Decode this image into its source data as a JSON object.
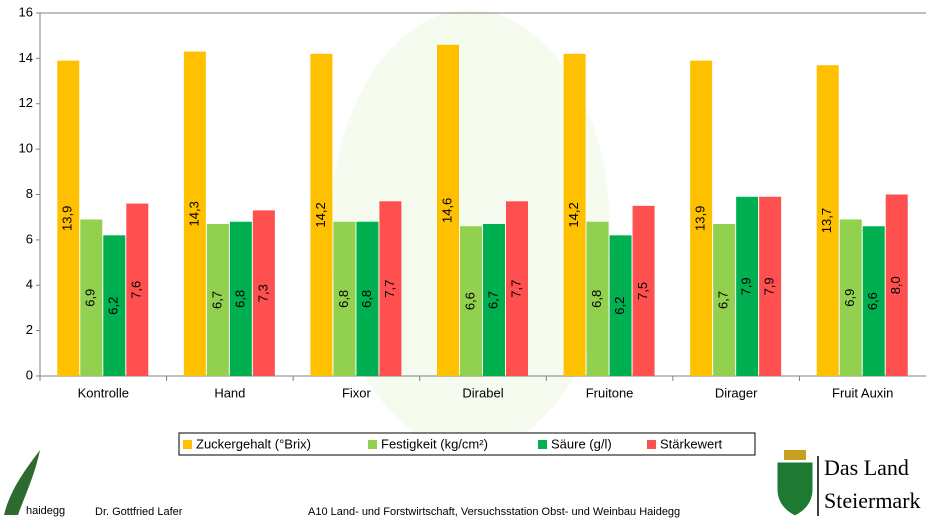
{
  "chart_data": {
    "type": "bar",
    "categories": [
      "Kontrolle",
      "Hand",
      "Fixor",
      "Dirabel",
      "Fruitone",
      "Dirager",
      "Fruit Auxin"
    ],
    "series": [
      {
        "name": "Zuckergehalt (°Brix)",
        "color": "#FFC000",
        "values": [
          13.9,
          14.3,
          14.2,
          14.6,
          14.2,
          13.9,
          13.7
        ],
        "value_labels": [
          "13,9",
          "14,3",
          "14,2",
          "14,6",
          "14,2",
          "13,9",
          "13,7"
        ]
      },
      {
        "name": "Festigkeit (kg/cm²)",
        "color": "#92D050",
        "values": [
          6.9,
          6.7,
          6.8,
          6.6,
          6.8,
          6.7,
          6.9
        ],
        "value_labels": [
          "6,9",
          "6,7",
          "6,8",
          "6,6",
          "6,8",
          "6,7",
          "6,9"
        ]
      },
      {
        "name": "Säure (g/l)",
        "color": "#00B050",
        "values": [
          6.2,
          6.8,
          6.8,
          6.7,
          6.2,
          7.9,
          6.6
        ],
        "value_labels": [
          "6,2",
          "6,8",
          "6,8",
          "6,7",
          "6,2",
          "7,9",
          "6,6"
        ]
      },
      {
        "name": "Stärkewert",
        "color": "#FF5050",
        "values": [
          7.6,
          7.3,
          7.7,
          7.7,
          7.5,
          7.9,
          8.0
        ],
        "value_labels": [
          "7,6",
          "7,3",
          "7,7",
          "7,7",
          "7,5",
          "7,9",
          "8,0"
        ]
      }
    ],
    "ylim": [
      0,
      16
    ],
    "yticks": [
      0,
      2,
      4,
      6,
      8,
      10,
      12,
      14,
      16
    ],
    "grid": false,
    "legend": "bottom"
  },
  "footer": {
    "logo_text": "haidegg",
    "author": "Dr. Gottfried Lafer",
    "institution": "A10 Land- und Forstwirtschaft, Versuchsstation Obst- und Weinbau Haidegg",
    "brand_line1": "Das Land",
    "brand_line2": "Steiermark"
  }
}
